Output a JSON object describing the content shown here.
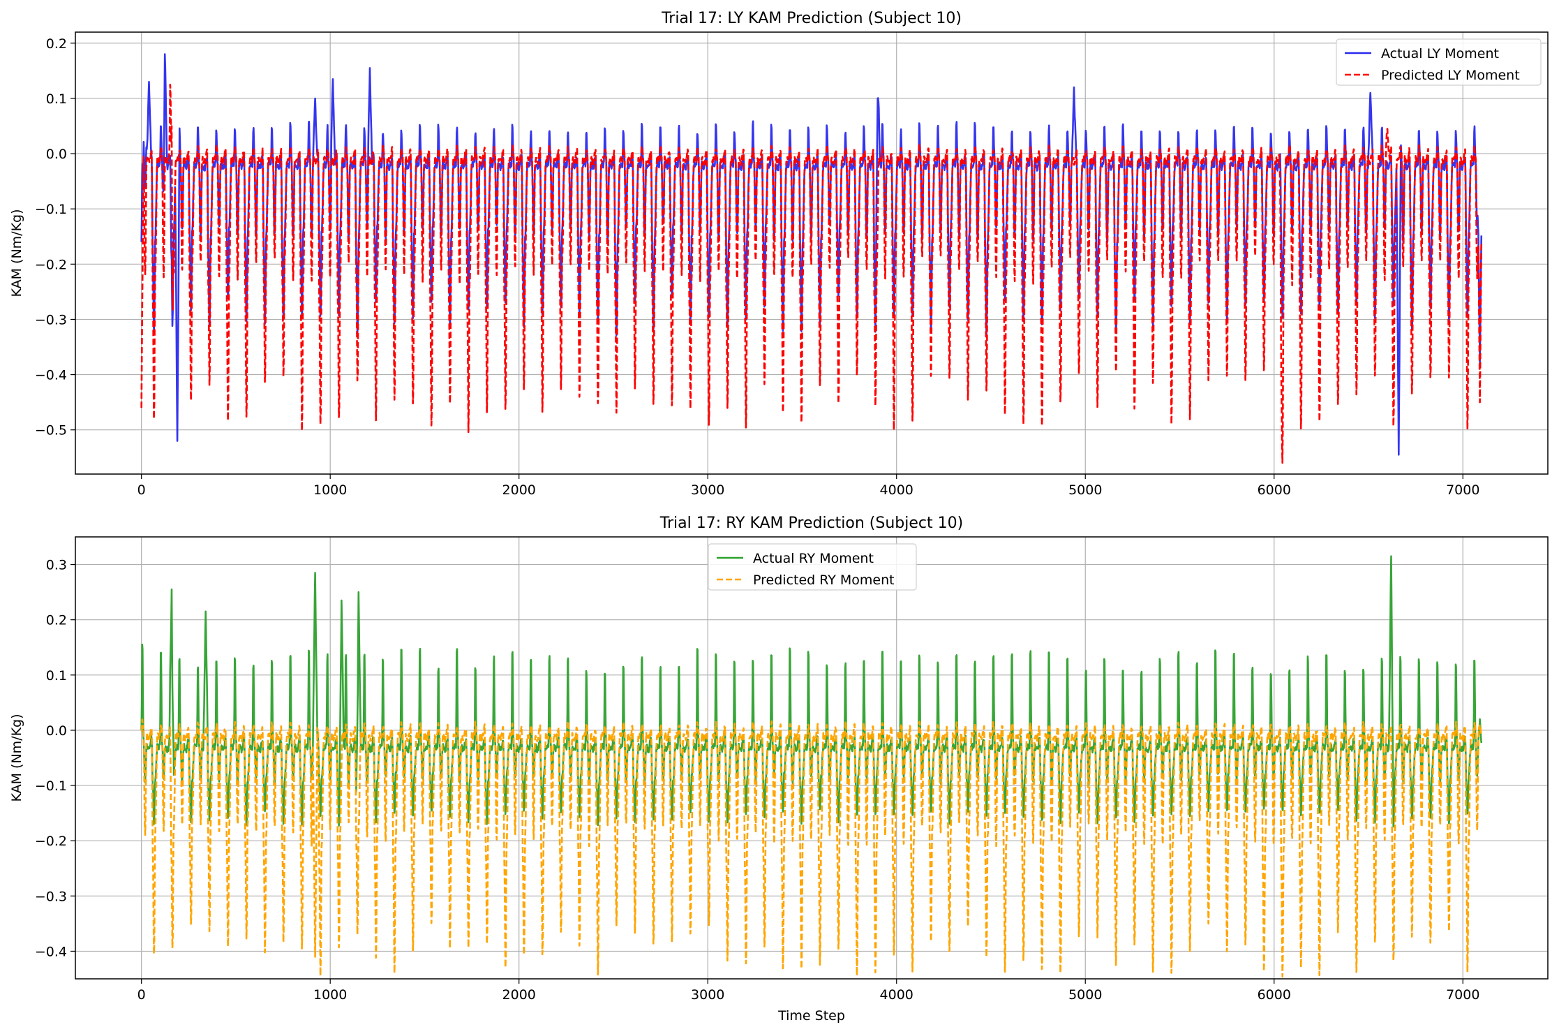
{
  "chart_data": [
    {
      "type": "line",
      "title": "Trial 17: LY KAM Prediction (Subject 10)",
      "xlabel": "",
      "ylabel": "KAM (Nm/Kg)",
      "xlim": [
        -350,
        7450
      ],
      "ylim": [
        -0.58,
        0.22
      ],
      "xticks": [
        0,
        1000,
        2000,
        3000,
        4000,
        5000,
        6000,
        7000
      ],
      "yticks": [
        -0.5,
        -0.4,
        -0.3,
        -0.2,
        -0.1,
        0.0,
        0.1,
        0.2
      ],
      "ytick_labels": [
        "−0.5",
        "−0.4",
        "−0.3",
        "−0.2",
        "−0.1",
        "0.0",
        "0.1",
        "0.2"
      ],
      "grid": true,
      "legend_position": "top-right",
      "n_points": 7100,
      "series": [
        {
          "name": "Actual LY Moment",
          "color": "#2a2aee",
          "style": "solid",
          "cycle_length": 98,
          "peak_value": 0.05,
          "trough_value": -0.3,
          "baseline_value": -0.02,
          "anchors": [
            [
              0,
              -0.16
            ],
            [
              20,
              -0.06
            ],
            [
              40,
              0.13
            ],
            [
              125,
              0.18
            ],
            [
              190,
              -0.52
            ],
            [
              920,
              0.1
            ],
            [
              1015,
              0.135
            ],
            [
              1210,
              0.155
            ],
            [
              3900,
              0.1
            ],
            [
              4940,
              0.12
            ],
            [
              6510,
              0.11
            ],
            [
              6660,
              -0.545
            ],
            [
              7090,
              -0.38
            ]
          ]
        },
        {
          "name": "Predicted LY Moment",
          "color": "#ff0000",
          "style": "dashed",
          "cycle_length": 98,
          "peak_value": 0.01,
          "trough_value": -0.455,
          "baseline_value": -0.01,
          "anchors": [
            [
              0,
              -0.46
            ],
            [
              160,
              0.05
            ],
            [
              6040,
              -0.46
            ],
            [
              6600,
              0.045
            ],
            [
              7090,
              -0.45
            ]
          ]
        }
      ]
    },
    {
      "type": "line",
      "title": "Trial 17: RY KAM Prediction (Subject 10)",
      "xlabel": "Time Step",
      "ylabel": "KAM (Nm/Kg)",
      "xlim": [
        -350,
        7450
      ],
      "ylim": [
        -0.45,
        0.35
      ],
      "xticks": [
        0,
        1000,
        2000,
        3000,
        4000,
        5000,
        6000,
        7000
      ],
      "yticks": [
        -0.4,
        -0.3,
        -0.2,
        -0.1,
        0.0,
        0.1,
        0.2,
        0.3
      ],
      "ytick_labels": [
        "−0.4",
        "−0.3",
        "−0.2",
        "−0.1",
        "0.0",
        "0.1",
        "0.2",
        "0.3"
      ],
      "grid": true,
      "legend_position": "top-center",
      "n_points": 7100,
      "series": [
        {
          "name": "Actual RY Moment",
          "color": "#2ca02c",
          "style": "solid",
          "cycle_length": 98,
          "peak_value": 0.14,
          "trough_value": -0.16,
          "baseline_value": -0.03,
          "anchors": [
            [
              0,
              0.0
            ],
            [
              160,
              0.255
            ],
            [
              340,
              0.215
            ],
            [
              920,
              0.285
            ],
            [
              1060,
              0.235
            ],
            [
              1150,
              0.25
            ],
            [
              6620,
              0.315
            ],
            [
              7090,
              0.02
            ]
          ]
        },
        {
          "name": "Predicted RY Moment",
          "color": "#ffa500",
          "style": "dashed",
          "cycle_length": 98,
          "peak_value": 0.01,
          "trough_value": -0.405,
          "baseline_value": -0.01,
          "anchors": [
            [
              0,
              0.0
            ],
            [
              920,
              -0.41
            ],
            [
              7090,
              0.01
            ]
          ]
        }
      ]
    }
  ]
}
